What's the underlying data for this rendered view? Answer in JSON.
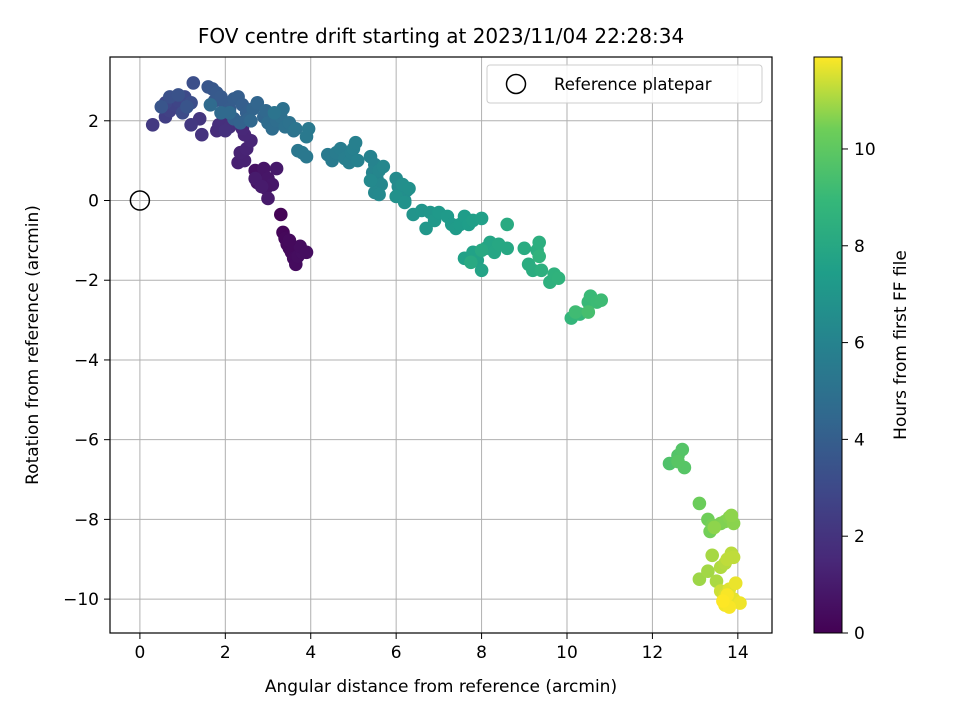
{
  "chart_data": {
    "type": "scatter",
    "title": "FOV centre drift starting at 2023/11/04 22:28:34",
    "xlabel": "Angular distance from reference (arcmin)",
    "ylabel": "Rotation from reference (arcmin)",
    "xlim": [
      -0.7,
      14.8
    ],
    "ylim": [
      -10.85,
      3.6
    ],
    "x_ticks": [
      0,
      2,
      4,
      6,
      8,
      10,
      12,
      14
    ],
    "y_ticks": [
      -10,
      -8,
      -6,
      -4,
      -2,
      0,
      2
    ],
    "x_tick_labels": [
      "0",
      "2",
      "4",
      "6",
      "8",
      "10",
      "12",
      "14"
    ],
    "y_tick_labels": [
      "−10",
      "−8",
      "−6",
      "−4",
      "−2",
      "0",
      "2"
    ],
    "grid": true,
    "colormap": "viridis",
    "colorbar": {
      "label": "Hours from first FF file",
      "range": [
        0,
        11.9
      ],
      "ticks": [
        0,
        2,
        4,
        6,
        8,
        10
      ],
      "tick_labels": [
        "0",
        "2",
        "4",
        "6",
        "8",
        "10"
      ]
    },
    "legend": {
      "placement": "top-right",
      "entries": [
        {
          "label": "Reference platepar",
          "marker": "hollow-circle"
        }
      ]
    },
    "reference_point": {
      "x": 0,
      "y": 0
    },
    "series": [
      {
        "points": [
          [
            3.3,
            -0.35,
            0.1
          ],
          [
            3.35,
            -0.8,
            0.2
          ],
          [
            3.4,
            -0.95,
            0.25
          ],
          [
            3.45,
            -1.1,
            0.3
          ],
          [
            3.5,
            -1.2,
            0.3
          ],
          [
            3.55,
            -1.3,
            0.35
          ],
          [
            3.6,
            -1.45,
            0.4
          ],
          [
            3.65,
            -1.6,
            0.4
          ],
          [
            3.7,
            -1.4,
            0.45
          ],
          [
            3.8,
            -1.3,
            0.5
          ],
          [
            3.75,
            -1.15,
            0.45
          ],
          [
            3.9,
            -1.3,
            0.5
          ],
          [
            3.5,
            -1.0,
            0.35
          ],
          [
            2.7,
            0.75,
            0.6
          ],
          [
            2.8,
            0.6,
            0.65
          ],
          [
            2.75,
            0.45,
            0.7
          ],
          [
            2.9,
            0.8,
            0.75
          ],
          [
            3.0,
            0.55,
            0.8
          ],
          [
            3.1,
            0.4,
            0.85
          ],
          [
            2.95,
            0.3,
            0.8
          ],
          [
            3.2,
            0.8,
            0.9
          ],
          [
            3.0,
            0.05,
            0.95
          ],
          [
            2.7,
            0.55,
            1.0
          ],
          [
            2.85,
            0.35,
            1.0
          ],
          [
            2.3,
            0.95,
            1.2
          ],
          [
            2.45,
            1.0,
            1.25
          ],
          [
            2.35,
            1.2,
            1.3
          ],
          [
            2.5,
            1.3,
            1.35
          ],
          [
            2.6,
            1.5,
            1.4
          ],
          [
            2.45,
            1.65,
            1.45
          ],
          [
            2.4,
            1.8,
            1.5
          ],
          [
            1.8,
            1.75,
            1.7
          ],
          [
            1.85,
            1.9,
            1.75
          ],
          [
            1.95,
            2.0,
            1.8
          ],
          [
            2.1,
            1.85,
            1.85
          ],
          [
            2.0,
            1.75,
            1.9
          ],
          [
            1.45,
            1.65,
            2.0
          ],
          [
            1.4,
            2.05,
            2.1
          ],
          [
            1.2,
            1.9,
            2.2
          ],
          [
            0.3,
            1.9,
            2.3
          ],
          [
            0.6,
            2.1,
            2.5
          ],
          [
            0.7,
            2.25,
            2.6
          ],
          [
            0.8,
            2.4,
            2.7
          ],
          [
            0.9,
            2.5,
            2.8
          ],
          [
            0.6,
            2.45,
            2.9
          ],
          [
            1.05,
            2.6,
            3.0
          ],
          [
            1.0,
            2.2,
            3.1
          ],
          [
            1.2,
            2.45,
            3.2
          ],
          [
            1.25,
            2.95,
            3.25
          ],
          [
            0.7,
            2.6,
            3.3
          ],
          [
            0.9,
            2.65,
            3.4
          ],
          [
            1.1,
            2.35,
            3.5
          ],
          [
            0.5,
            2.35,
            3.55
          ],
          [
            1.6,
            2.85,
            3.6
          ],
          [
            1.7,
            2.8,
            3.65
          ],
          [
            1.75,
            2.5,
            3.7
          ],
          [
            1.8,
            2.7,
            3.75
          ],
          [
            1.9,
            2.6,
            3.8
          ],
          [
            2.0,
            2.4,
            3.85
          ],
          [
            2.1,
            2.3,
            3.9
          ],
          [
            2.2,
            2.55,
            3.95
          ],
          [
            2.3,
            2.6,
            4.0
          ],
          [
            2.4,
            2.4,
            4.05
          ],
          [
            2.5,
            2.2,
            4.1
          ],
          [
            2.2,
            2.05,
            4.15
          ],
          [
            2.35,
            1.95,
            4.2
          ],
          [
            2.55,
            2.05,
            4.25
          ],
          [
            2.65,
            2.3,
            4.3
          ],
          [
            2.75,
            2.45,
            4.35
          ],
          [
            2.9,
            2.1,
            4.4
          ],
          [
            2.6,
            2.0,
            4.45
          ],
          [
            2.95,
            2.25,
            4.5
          ],
          [
            1.9,
            2.2,
            4.55
          ],
          [
            2.1,
            2.2,
            4.6
          ],
          [
            1.65,
            2.4,
            4.65
          ],
          [
            3.0,
            1.95,
            4.7
          ],
          [
            3.1,
            1.8,
            4.75
          ],
          [
            3.2,
            2.0,
            4.8
          ],
          [
            3.3,
            2.1,
            4.9
          ],
          [
            3.35,
            2.3,
            4.95
          ],
          [
            3.4,
            1.85,
            5.0
          ],
          [
            3.5,
            1.95,
            5.05
          ],
          [
            3.6,
            1.75,
            5.1
          ],
          [
            3.15,
            2.2,
            5.15
          ],
          [
            3.65,
            1.8,
            5.2
          ],
          [
            3.7,
            1.25,
            5.3
          ],
          [
            3.8,
            1.2,
            5.35
          ],
          [
            3.9,
            1.1,
            5.4
          ],
          [
            3.95,
            1.8,
            5.45
          ],
          [
            3.9,
            1.6,
            5.45
          ],
          [
            4.4,
            1.15,
            5.5
          ],
          [
            4.5,
            1.0,
            5.55
          ],
          [
            4.6,
            1.2,
            5.6
          ],
          [
            4.7,
            1.3,
            5.65
          ],
          [
            4.8,
            1.05,
            5.7
          ],
          [
            4.9,
            0.95,
            5.75
          ],
          [
            4.95,
            1.2,
            5.8
          ],
          [
            5.0,
            1.3,
            5.85
          ],
          [
            5.05,
            1.45,
            5.85
          ],
          [
            5.1,
            1.0,
            5.9
          ],
          [
            5.4,
            1.1,
            5.95
          ],
          [
            5.5,
            0.9,
            6.0
          ],
          [
            5.45,
            0.7,
            6.05
          ],
          [
            5.55,
            0.55,
            6.1
          ],
          [
            5.6,
            0.75,
            6.15
          ],
          [
            5.7,
            0.85,
            6.2
          ],
          [
            5.65,
            0.4,
            6.2
          ],
          [
            5.5,
            0.2,
            6.25
          ],
          [
            5.4,
            0.5,
            6.3
          ],
          [
            5.6,
            0.15,
            6.3
          ],
          [
            6.0,
            0.55,
            6.4
          ],
          [
            6.05,
            0.35,
            6.45
          ],
          [
            6.1,
            0.2,
            6.5
          ],
          [
            6.2,
            0.0,
            6.55
          ],
          [
            6.25,
            0.25,
            6.6
          ],
          [
            6.15,
            0.4,
            6.65
          ],
          [
            6.3,
            0.3,
            6.7
          ],
          [
            6.0,
            0.1,
            6.75
          ],
          [
            6.2,
            -0.05,
            6.8
          ],
          [
            6.4,
            -0.35,
            6.9
          ],
          [
            6.6,
            -0.25,
            6.95
          ],
          [
            6.8,
            -0.3,
            7.0
          ],
          [
            6.7,
            -0.7,
            7.05
          ],
          [
            6.9,
            -0.5,
            7.1
          ],
          [
            7.0,
            -0.3,
            7.15
          ],
          [
            7.2,
            -0.4,
            7.2
          ],
          [
            7.3,
            -0.6,
            7.25
          ],
          [
            7.4,
            -0.7,
            7.3
          ],
          [
            7.5,
            -0.6,
            7.35
          ],
          [
            7.6,
            -0.4,
            7.4
          ],
          [
            7.7,
            -0.6,
            7.45
          ],
          [
            7.8,
            -0.5,
            7.5
          ],
          [
            8.0,
            -0.45,
            7.55
          ],
          [
            7.6,
            -1.45,
            7.6
          ],
          [
            7.8,
            -1.3,
            7.65
          ],
          [
            7.9,
            -1.5,
            7.7
          ],
          [
            8.0,
            -1.75,
            7.75
          ],
          [
            8.1,
            -1.2,
            7.8
          ],
          [
            8.2,
            -1.05,
            7.85
          ],
          [
            8.3,
            -1.3,
            7.9
          ],
          [
            8.4,
            -1.1,
            7.95
          ],
          [
            8.6,
            -1.2,
            8.0
          ],
          [
            8.0,
            -1.25,
            8.05
          ],
          [
            7.75,
            -1.55,
            8.1
          ],
          [
            8.6,
            -0.6,
            8.15
          ],
          [
            9.0,
            -1.2,
            8.2
          ],
          [
            9.1,
            -1.6,
            8.25
          ],
          [
            9.2,
            -1.75,
            8.3
          ],
          [
            9.3,
            -1.25,
            8.35
          ],
          [
            9.35,
            -1.05,
            8.4
          ],
          [
            9.4,
            -1.75,
            8.45
          ],
          [
            9.6,
            -2.05,
            8.5
          ],
          [
            9.7,
            -1.85,
            8.55
          ],
          [
            9.8,
            -1.95,
            8.6
          ],
          [
            9.35,
            -1.4,
            8.65
          ],
          [
            10.1,
            -2.95,
            8.8
          ],
          [
            10.3,
            -2.85,
            8.9
          ],
          [
            10.5,
            -2.55,
            9.0
          ],
          [
            10.55,
            -2.4,
            9.05
          ],
          [
            10.7,
            -2.55,
            9.1
          ],
          [
            10.8,
            -2.5,
            9.15
          ],
          [
            10.2,
            -2.8,
            9.2
          ],
          [
            10.5,
            -2.8,
            9.4
          ],
          [
            12.4,
            -6.6,
            9.6
          ],
          [
            12.6,
            -6.4,
            9.7
          ],
          [
            12.7,
            -6.25,
            9.75
          ],
          [
            12.75,
            -6.7,
            9.8
          ],
          [
            12.6,
            -6.55,
            9.85
          ],
          [
            13.1,
            -7.6,
            10.3
          ],
          [
            13.3,
            -8.0,
            10.4
          ],
          [
            13.35,
            -8.3,
            10.45
          ],
          [
            13.4,
            -8.15,
            10.5
          ],
          [
            13.6,
            -8.1,
            10.55
          ],
          [
            13.7,
            -8.05,
            10.6
          ],
          [
            13.8,
            -7.95,
            10.65
          ],
          [
            13.9,
            -8.1,
            10.7
          ],
          [
            13.85,
            -7.9,
            10.75
          ],
          [
            13.45,
            -8.2,
            10.75
          ],
          [
            13.1,
            -9.5,
            10.9
          ],
          [
            13.3,
            -9.3,
            10.95
          ],
          [
            13.4,
            -8.9,
            11.0
          ],
          [
            13.5,
            -9.55,
            11.05
          ],
          [
            13.6,
            -9.2,
            11.1
          ],
          [
            13.7,
            -9.1,
            11.15
          ],
          [
            13.85,
            -8.85,
            11.2
          ],
          [
            13.9,
            -8.95,
            11.25
          ],
          [
            13.75,
            -9.0,
            11.25
          ],
          [
            13.6,
            -9.8,
            11.4
          ],
          [
            13.7,
            -9.9,
            11.5
          ],
          [
            13.75,
            -10.05,
            11.55
          ],
          [
            13.8,
            -9.75,
            11.6
          ],
          [
            13.9,
            -10.0,
            11.65
          ],
          [
            13.95,
            -9.6,
            11.7
          ],
          [
            14.05,
            -10.1,
            11.75
          ],
          [
            13.7,
            -10.15,
            11.8
          ],
          [
            13.8,
            -10.2,
            11.85
          ],
          [
            13.75,
            -9.9,
            11.85
          ],
          [
            13.65,
            -10.05,
            11.9
          ]
        ]
      }
    ]
  }
}
